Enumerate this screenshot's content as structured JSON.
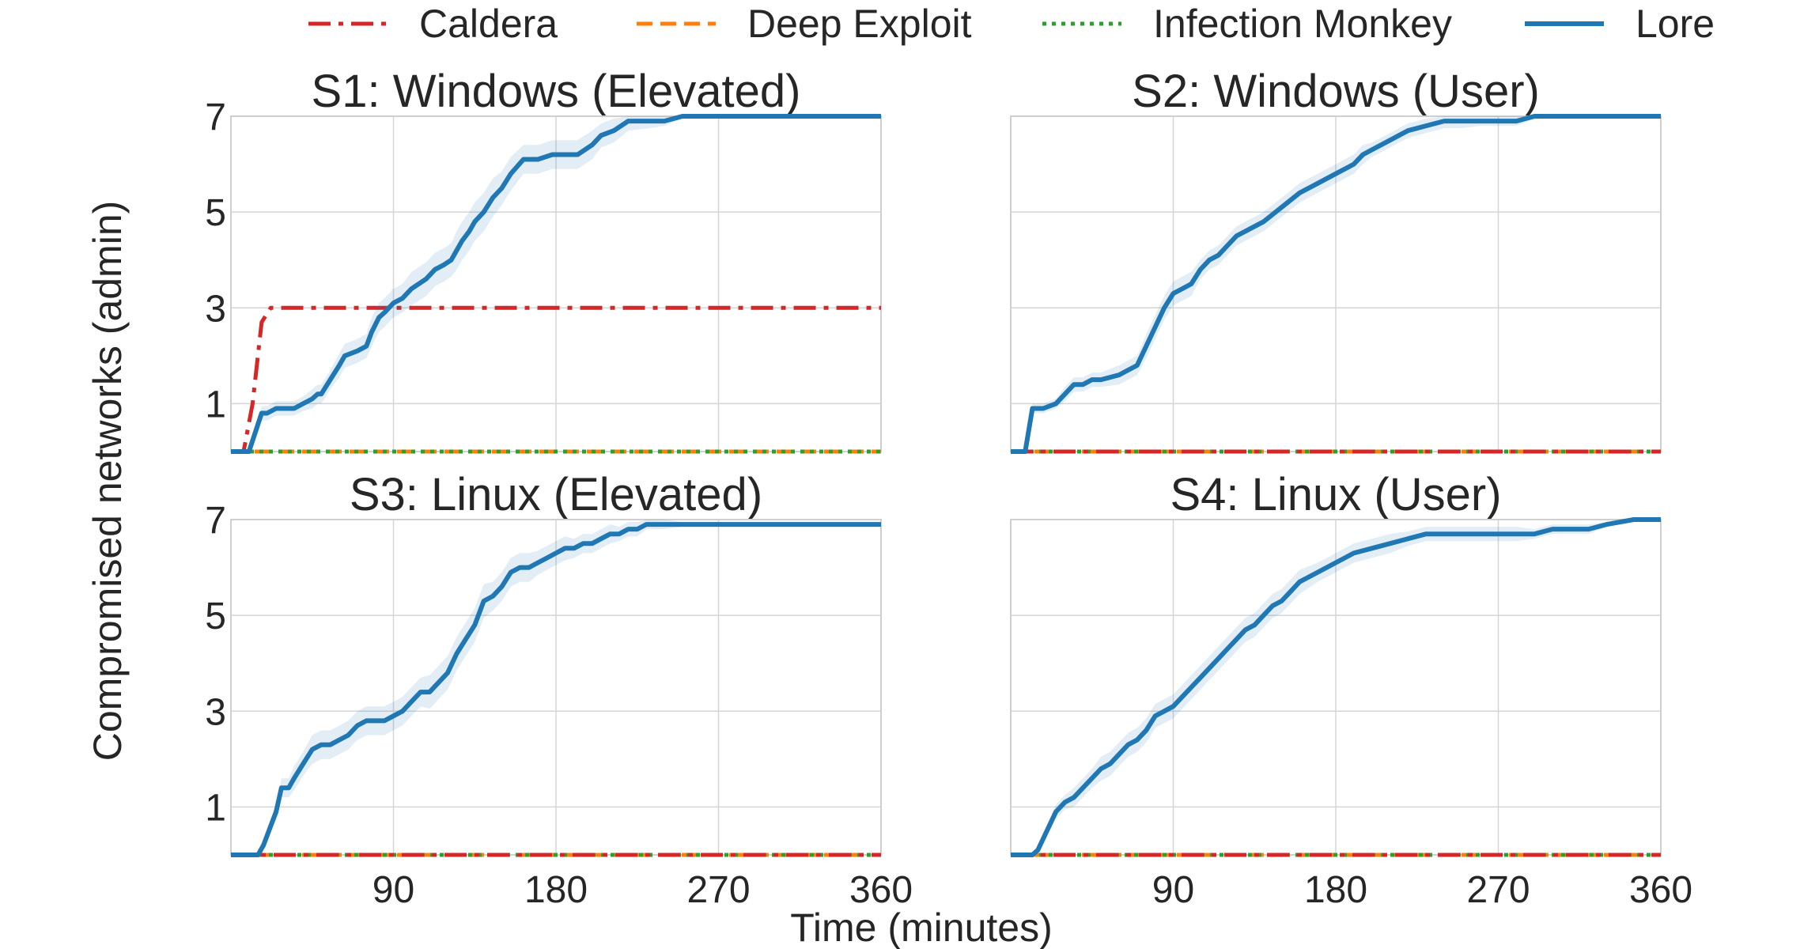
{
  "chart_data": {
    "type": "line",
    "legend_position": "top-center",
    "grid": true,
    "ylabel": "Compromised networks (admin)",
    "xlabel": "Time (minutes)",
    "xlim": [
      0,
      360
    ],
    "ylim": [
      0,
      7
    ],
    "xticks": [
      90,
      180,
      270,
      360
    ],
    "yticks": [
      1,
      3,
      5,
      7
    ],
    "series_styles": [
      {
        "name": "Caldera",
        "color": "#d62728",
        "style": "dashdot"
      },
      {
        "name": "Deep Exploit",
        "color": "#ff7f0e",
        "style": "dashed"
      },
      {
        "name": "Infection Monkey",
        "color": "#2ca02c",
        "style": "dotted"
      },
      {
        "name": "Lore",
        "color": "#1f77b4",
        "style": "solid"
      }
    ],
    "panels": [
      {
        "title": "S1: Windows (Elevated)",
        "series": [
          {
            "name": "Caldera",
            "x": [
              0,
              7,
              12,
              17,
              22,
              360
            ],
            "y": [
              0,
              0,
              1,
              2.7,
              3,
              3
            ]
          },
          {
            "name": "Deep Exploit",
            "x": [
              0,
              360
            ],
            "y": [
              0,
              0
            ]
          },
          {
            "name": "Infection Monkey",
            "x": [
              0,
              360
            ],
            "y": [
              0,
              0
            ]
          },
          {
            "name": "Lore",
            "x": [
              0,
              10,
              17,
              20,
              25,
              35,
              40,
              45,
              48,
              50,
              55,
              60,
              63,
              70,
              75,
              78,
              82,
              85,
              90,
              95,
              100,
              108,
              113,
              118,
              122,
              125,
              128,
              132,
              135,
              140,
              145,
              150,
              155,
              162,
              170,
              178,
              185,
              192,
              200,
              205,
              212,
              220,
              232,
              240,
              250,
              260,
              270,
              290,
              320,
              360
            ],
            "y": [
              0,
              0,
              0.8,
              0.8,
              0.9,
              0.9,
              1.0,
              1.1,
              1.2,
              1.2,
              1.5,
              1.8,
              2.0,
              2.1,
              2.2,
              2.5,
              2.8,
              2.9,
              3.1,
              3.2,
              3.4,
              3.6,
              3.8,
              3.9,
              4.0,
              4.2,
              4.4,
              4.6,
              4.8,
              5.0,
              5.3,
              5.5,
              5.8,
              6.1,
              6.1,
              6.2,
              6.2,
              6.2,
              6.4,
              6.6,
              6.7,
              6.9,
              6.9,
              6.9,
              7.0,
              7.0,
              7.0,
              7.0,
              7.0,
              7.0
            ],
            "band": [
              0.0,
              0.0,
              0.15,
              0.15,
              0.15,
              0.15,
              0.15,
              0.2,
              0.2,
              0.2,
              0.2,
              0.25,
              0.25,
              0.25,
              0.25,
              0.3,
              0.3,
              0.3,
              0.3,
              0.3,
              0.35,
              0.35,
              0.35,
              0.35,
              0.35,
              0.4,
              0.4,
              0.4,
              0.4,
              0.4,
              0.4,
              0.35,
              0.35,
              0.3,
              0.3,
              0.3,
              0.3,
              0.3,
              0.3,
              0.25,
              0.25,
              0.2,
              0.15,
              0.1,
              0.05,
              0.05,
              0.0,
              0.0,
              0.0,
              0.0
            ]
          }
        ]
      },
      {
        "title": "S2: Windows (User)",
        "series": [
          {
            "name": "Caldera",
            "x": [
              0,
              360
            ],
            "y": [
              0,
              0
            ]
          },
          {
            "name": "Deep Exploit",
            "x": [
              0,
              360
            ],
            "y": [
              0,
              0
            ]
          },
          {
            "name": "Infection Monkey",
            "x": [
              0,
              360
            ],
            "y": [
              0,
              0
            ]
          },
          {
            "name": "Lore",
            "x": [
              0,
              8,
              12,
              18,
              25,
              30,
              35,
              40,
              45,
              50,
              60,
              65,
              70,
              75,
              80,
              85,
              90,
              95,
              100,
              105,
              110,
              115,
              120,
              125,
              135,
              140,
              150,
              160,
              170,
              180,
              190,
              195,
              200,
              210,
              220,
              230,
              240,
              250,
              260,
              270,
              280,
              290,
              300,
              330,
              360
            ],
            "y": [
              0,
              0,
              0.9,
              0.9,
              1.0,
              1.2,
              1.4,
              1.4,
              1.5,
              1.5,
              1.6,
              1.7,
              1.8,
              2.2,
              2.6,
              3.0,
              3.3,
              3.4,
              3.5,
              3.8,
              4.0,
              4.1,
              4.3,
              4.5,
              4.7,
              4.8,
              5.1,
              5.4,
              5.6,
              5.8,
              6.0,
              6.2,
              6.3,
              6.5,
              6.7,
              6.8,
              6.9,
              6.9,
              6.9,
              6.9,
              6.9,
              7.0,
              7.0,
              7.0,
              7.0
            ],
            "band": [
              0.0,
              0.0,
              0.1,
              0.1,
              0.1,
              0.15,
              0.15,
              0.15,
              0.15,
              0.15,
              0.2,
              0.2,
              0.2,
              0.25,
              0.25,
              0.25,
              0.25,
              0.25,
              0.25,
              0.2,
              0.2,
              0.2,
              0.2,
              0.2,
              0.2,
              0.2,
              0.2,
              0.2,
              0.2,
              0.2,
              0.2,
              0.2,
              0.15,
              0.15,
              0.15,
              0.15,
              0.15,
              0.15,
              0.1,
              0.1,
              0.1,
              0.05,
              0.05,
              0.05,
              0.05
            ]
          }
        ]
      },
      {
        "title": "S3: Linux (Elevated)",
        "series": [
          {
            "name": "Caldera",
            "x": [
              0,
              360
            ],
            "y": [
              0,
              0
            ]
          },
          {
            "name": "Deep Exploit",
            "x": [
              0,
              360
            ],
            "y": [
              0,
              0
            ]
          },
          {
            "name": "Infection Monkey",
            "x": [
              0,
              360
            ],
            "y": [
              0,
              0
            ]
          },
          {
            "name": "Lore",
            "x": [
              0,
              15,
              18,
              22,
              25,
              28,
              32,
              35,
              40,
              45,
              50,
              55,
              60,
              65,
              70,
              75,
              80,
              85,
              90,
              95,
              100,
              105,
              110,
              115,
              120,
              125,
              130,
              135,
              140,
              145,
              150,
              155,
              160,
              165,
              170,
              175,
              180,
              185,
              190,
              195,
              200,
              205,
              210,
              215,
              220,
              225,
              230,
              240,
              250,
              260,
              270,
              280,
              300,
              330,
              360
            ],
            "y": [
              0,
              0,
              0.2,
              0.6,
              0.9,
              1.4,
              1.4,
              1.6,
              1.9,
              2.2,
              2.3,
              2.3,
              2.4,
              2.5,
              2.7,
              2.8,
              2.8,
              2.8,
              2.9,
              3.0,
              3.2,
              3.4,
              3.4,
              3.6,
              3.8,
              4.2,
              4.5,
              4.8,
              5.3,
              5.4,
              5.6,
              5.9,
              6.0,
              6.0,
              6.1,
              6.2,
              6.3,
              6.4,
              6.4,
              6.5,
              6.5,
              6.6,
              6.7,
              6.7,
              6.8,
              6.8,
              6.9,
              6.9,
              6.9,
              6.9,
              6.9,
              6.9,
              6.9,
              6.9,
              6.9
            ],
            "band": [
              0.0,
              0.0,
              0.05,
              0.1,
              0.15,
              0.2,
              0.2,
              0.25,
              0.25,
              0.3,
              0.3,
              0.3,
              0.3,
              0.3,
              0.3,
              0.3,
              0.3,
              0.3,
              0.3,
              0.3,
              0.3,
              0.3,
              0.35,
              0.35,
              0.35,
              0.35,
              0.35,
              0.35,
              0.35,
              0.3,
              0.3,
              0.3,
              0.3,
              0.3,
              0.25,
              0.25,
              0.25,
              0.25,
              0.2,
              0.2,
              0.2,
              0.2,
              0.2,
              0.15,
              0.15,
              0.15,
              0.1,
              0.1,
              0.05,
              0.05,
              0.05,
              0.05,
              0.05,
              0.05,
              0.05
            ]
          }
        ]
      },
      {
        "title": "S4: Linux (User)",
        "series": [
          {
            "name": "Caldera",
            "x": [
              0,
              360
            ],
            "y": [
              0,
              0
            ]
          },
          {
            "name": "Deep Exploit",
            "x": [
              0,
              360
            ],
            "y": [
              0,
              0
            ]
          },
          {
            "name": "Infection Monkey",
            "x": [
              0,
              360
            ],
            "y": [
              0,
              0
            ]
          },
          {
            "name": "Lore",
            "x": [
              0,
              12,
              15,
              20,
              25,
              30,
              35,
              40,
              45,
              50,
              55,
              60,
              65,
              70,
              75,
              80,
              85,
              90,
              95,
              100,
              105,
              110,
              115,
              120,
              125,
              130,
              135,
              140,
              145,
              150,
              155,
              160,
              170,
              180,
              190,
              200,
              210,
              220,
              230,
              240,
              250,
              260,
              270,
              280,
              290,
              300,
              310,
              320,
              330,
              345,
              360
            ],
            "y": [
              0,
              0,
              0.1,
              0.5,
              0.9,
              1.1,
              1.2,
              1.4,
              1.6,
              1.8,
              1.9,
              2.1,
              2.3,
              2.4,
              2.6,
              2.9,
              3.0,
              3.1,
              3.3,
              3.5,
              3.7,
              3.9,
              4.1,
              4.3,
              4.5,
              4.7,
              4.8,
              5.0,
              5.2,
              5.3,
              5.5,
              5.7,
              5.9,
              6.1,
              6.3,
              6.4,
              6.5,
              6.6,
              6.7,
              6.7,
              6.7,
              6.7,
              6.7,
              6.7,
              6.7,
              6.8,
              6.8,
              6.8,
              6.9,
              7.0,
              7.0
            ],
            "band": [
              0.0,
              0.0,
              0.05,
              0.1,
              0.15,
              0.15,
              0.2,
              0.2,
              0.2,
              0.25,
              0.25,
              0.25,
              0.25,
              0.25,
              0.25,
              0.25,
              0.25,
              0.25,
              0.25,
              0.25,
              0.25,
              0.25,
              0.25,
              0.25,
              0.25,
              0.25,
              0.25,
              0.25,
              0.25,
              0.25,
              0.25,
              0.25,
              0.2,
              0.2,
              0.2,
              0.2,
              0.2,
              0.15,
              0.15,
              0.15,
              0.15,
              0.15,
              0.15,
              0.15,
              0.1,
              0.1,
              0.1,
              0.1,
              0.05,
              0.05,
              0.05
            ]
          }
        ]
      }
    ]
  }
}
